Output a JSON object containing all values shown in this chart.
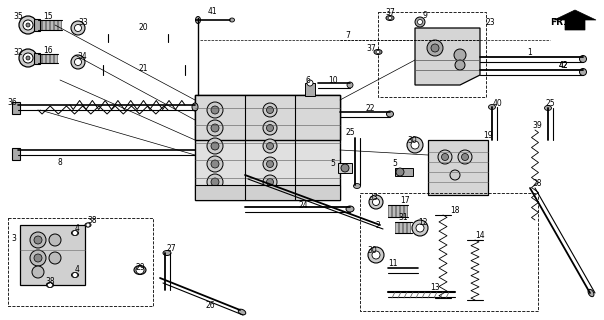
{
  "bg_color": "#ffffff",
  "fig_width": 6.04,
  "fig_height": 3.2,
  "dpi": 100,
  "line_color": "#1a1a1a",
  "gray": "#888888",
  "dark_gray": "#444444"
}
